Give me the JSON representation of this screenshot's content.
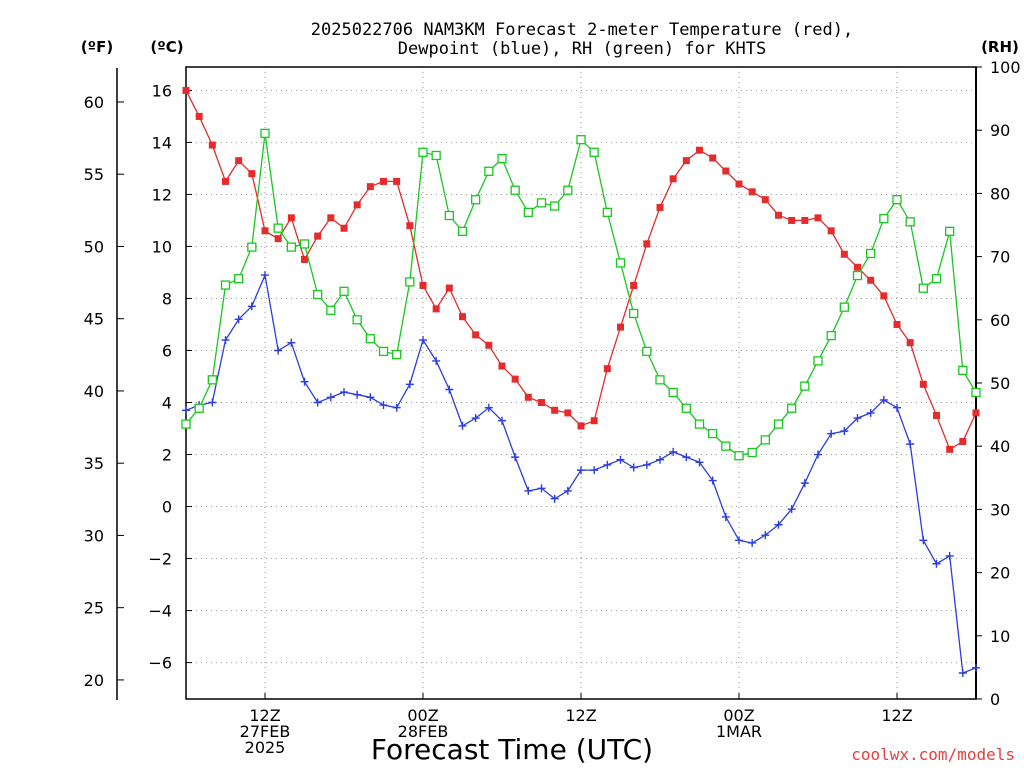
{
  "title_lines": [
    "2025022706 NAM3KM Forecast 2-meter Temperature (red),",
    "Dewpoint (blue), RH (green) for KHTS"
  ],
  "unit_labels": {
    "fahrenheit": "(ºF)",
    "celsius": "(ºC)",
    "rh": "(RH)"
  },
  "credit": "coolwx.com/models",
  "colors": {
    "temperature": "#e52b2b",
    "dewpoint": "#2a3ee0",
    "rh": "#18c81f",
    "grid": "#9a9a9a",
    "credit": "#e24141"
  },
  "chart_data": {
    "type": "line",
    "xlabel": "Forecast Time (UTC)",
    "x_unit": "forecast hour from 2025-02-27 06Z",
    "x_range": [
      0,
      60
    ],
    "x_ticks": [
      {
        "x": 6,
        "lines": [
          "12Z",
          "27FEB",
          "2025"
        ]
      },
      {
        "x": 18,
        "lines": [
          "00Z",
          "28FEB"
        ]
      },
      {
        "x": 30,
        "lines": [
          "12Z"
        ]
      },
      {
        "x": 42,
        "lines": [
          "00Z",
          "1MAR"
        ]
      },
      {
        "x": 54,
        "lines": [
          "12Z"
        ]
      }
    ],
    "left_axis_celsius": {
      "range": [
        -7.4,
        16.9
      ],
      "ticks": [
        16,
        14,
        12,
        10,
        8,
        6,
        4,
        2,
        0,
        -2,
        -4,
        -6
      ]
    },
    "left_axis_fahrenheit": {
      "ticks": [
        60,
        55,
        50,
        45,
        40,
        35,
        30,
        25,
        20
      ]
    },
    "right_axis_rh": {
      "range": [
        0,
        100
      ],
      "ticks": [
        100,
        90,
        80,
        70,
        60,
        50,
        40,
        30,
        20,
        10,
        0
      ]
    },
    "grid": true,
    "series": [
      {
        "name": "Temperature",
        "axis": "celsius",
        "marker": "filled-square",
        "values": [
          16.0,
          15.0,
          13.9,
          12.5,
          13.3,
          12.8,
          10.6,
          10.3,
          11.1,
          9.5,
          10.4,
          11.1,
          10.7,
          11.6,
          12.3,
          12.5,
          12.5,
          10.8,
          8.5,
          7.6,
          8.4,
          7.3,
          6.6,
          6.2,
          5.4,
          4.9,
          4.2,
          4.0,
          3.7,
          3.6,
          3.1,
          3.3,
          5.3,
          6.9,
          8.5,
          10.1,
          11.5,
          12.6,
          13.3,
          13.7,
          13.4,
          12.9,
          12.4,
          12.1,
          11.8,
          11.2,
          11.0,
          11.0,
          11.1,
          10.6,
          9.7,
          9.2,
          8.7,
          8.1,
          7.0,
          6.3,
          4.7,
          3.5,
          2.2,
          2.5,
          3.6
        ]
      },
      {
        "name": "Dewpoint",
        "axis": "celsius",
        "marker": "plus",
        "values": [
          3.7,
          3.9,
          4.0,
          6.4,
          7.2,
          7.7,
          8.9,
          6.0,
          6.3,
          4.8,
          4.0,
          4.2,
          4.4,
          4.3,
          4.2,
          3.9,
          3.8,
          4.7,
          6.4,
          5.6,
          4.5,
          3.1,
          3.4,
          3.8,
          3.3,
          1.9,
          0.6,
          0.7,
          0.3,
          0.6,
          1.4,
          1.4,
          1.6,
          1.8,
          1.5,
          1.6,
          1.8,
          2.1,
          1.9,
          1.7,
          1.0,
          -0.4,
          -1.3,
          -1.4,
          -1.1,
          -0.7,
          -0.1,
          0.9,
          2.0,
          2.8,
          2.9,
          3.4,
          3.6,
          4.1,
          3.8,
          2.4,
          -1.3,
          -2.2,
          -1.9,
          -6.4,
          -6.2
        ]
      },
      {
        "name": "RH",
        "axis": "rh",
        "marker": "open-square",
        "values": [
          43.5,
          46,
          50.5,
          65.5,
          66.5,
          71.5,
          89.5,
          74.5,
          71.5,
          72,
          64,
          61.5,
          64.5,
          60,
          57,
          55,
          54.5,
          66,
          86.5,
          86,
          76.5,
          74,
          79,
          83.5,
          85.5,
          80.5,
          77,
          78.5,
          78,
          80.5,
          88.5,
          86.5,
          77,
          69,
          61,
          55,
          50.5,
          48.5,
          46,
          43.5,
          42,
          40,
          38.5,
          39,
          41,
          43.5,
          46,
          49.5,
          53.5,
          57.5,
          62,
          67,
          70.5,
          76,
          79,
          75.5,
          65,
          66.5,
          74,
          52,
          48.5
        ]
      }
    ]
  }
}
